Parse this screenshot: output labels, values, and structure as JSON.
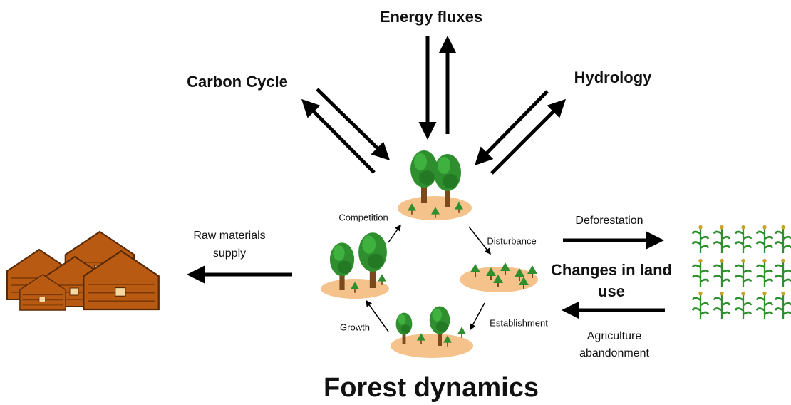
{
  "header": {
    "title": "Forest dynamics"
  },
  "external": {
    "energy": "Energy fluxes",
    "carbon": "Carbon Cycle",
    "hydrology": "Hydrology"
  },
  "cycle": {
    "competition": "Competition",
    "disturbance": "Disturbance",
    "establishment": "Establishment",
    "growth": "Growth"
  },
  "land": {
    "raw_materials": [
      "Raw materials",
      "supply"
    ],
    "deforestation": "Deforestation",
    "land_use": [
      "Changes in land",
      "use"
    ],
    "abandonment": [
      "Agriculture",
      "abandonment"
    ]
  }
}
